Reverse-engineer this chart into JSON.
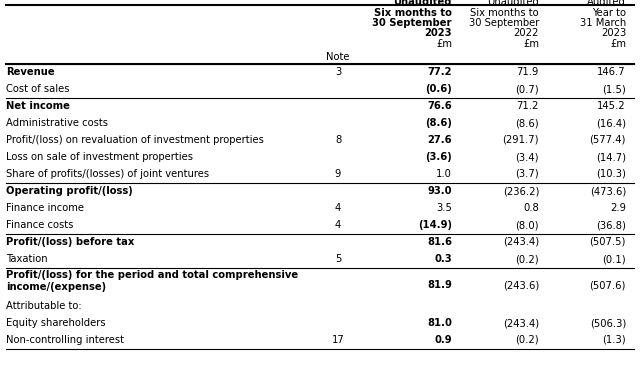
{
  "header2_lines": [
    "Unaudited",
    "Six months to",
    "30 September",
    "2023",
    "£m"
  ],
  "header3_lines": [
    "Unaudited",
    "Six months to",
    "30 September",
    "2022",
    "£m"
  ],
  "header4_lines": [
    "Audited",
    "Year to",
    "31 March",
    "2023",
    "£m"
  ],
  "rows": [
    {
      "label": "Revenue",
      "bold_label": true,
      "note": "3",
      "v1": "77.2",
      "bold_v1": true,
      "v2": "71.9",
      "bold_v2": false,
      "v3": "146.7",
      "bold_v3": false,
      "sep_before": true,
      "tall": false
    },
    {
      "label": "Cost of sales",
      "bold_label": false,
      "note": "",
      "v1": "(0.6)",
      "bold_v1": true,
      "v2": "(0.7)",
      "bold_v2": false,
      "v3": "(1.5)",
      "bold_v3": false,
      "sep_before": false,
      "tall": false
    },
    {
      "label": "Net income",
      "bold_label": true,
      "note": "",
      "v1": "76.6",
      "bold_v1": true,
      "v2": "71.2",
      "bold_v2": false,
      "v3": "145.2",
      "bold_v3": false,
      "sep_before": true,
      "tall": false
    },
    {
      "label": "Administrative costs",
      "bold_label": false,
      "note": "",
      "v1": "(8.6)",
      "bold_v1": true,
      "v2": "(8.6)",
      "bold_v2": false,
      "v3": "(16.4)",
      "bold_v3": false,
      "sep_before": false,
      "tall": false
    },
    {
      "label": "Profit/(loss) on revaluation of investment properties",
      "bold_label": false,
      "note": "8",
      "v1": "27.6",
      "bold_v1": true,
      "v2": "(291.7)",
      "bold_v2": false,
      "v3": "(577.4)",
      "bold_v3": false,
      "sep_before": false,
      "tall": false
    },
    {
      "label": "Loss on sale of investment properties",
      "bold_label": false,
      "note": "",
      "v1": "(3.6)",
      "bold_v1": true,
      "v2": "(3.4)",
      "bold_v2": false,
      "v3": "(14.7)",
      "bold_v3": false,
      "sep_before": false,
      "tall": false
    },
    {
      "label": "Share of profits/(losses) of joint ventures",
      "bold_label": false,
      "note": "9",
      "v1": "1.0",
      "bold_v1": false,
      "v2": "(3.7)",
      "bold_v2": false,
      "v3": "(10.3)",
      "bold_v3": false,
      "sep_before": false,
      "tall": false
    },
    {
      "label": "Operating profit/(loss)",
      "bold_label": true,
      "note": "",
      "v1": "93.0",
      "bold_v1": true,
      "v2": "(236.2)",
      "bold_v2": false,
      "v3": "(473.6)",
      "bold_v3": false,
      "sep_before": true,
      "tall": false
    },
    {
      "label": "Finance income",
      "bold_label": false,
      "note": "4",
      "v1": "3.5",
      "bold_v1": false,
      "v2": "0.8",
      "bold_v2": false,
      "v3": "2.9",
      "bold_v3": false,
      "sep_before": false,
      "tall": false
    },
    {
      "label": "Finance costs",
      "bold_label": false,
      "note": "4",
      "v1": "(14.9)",
      "bold_v1": true,
      "v2": "(8.0)",
      "bold_v2": false,
      "v3": "(36.8)",
      "bold_v3": false,
      "sep_before": false,
      "tall": false
    },
    {
      "label": "Profit/(loss) before tax",
      "bold_label": true,
      "note": "",
      "v1": "81.6",
      "bold_v1": true,
      "v2": "(243.4)",
      "bold_v2": false,
      "v3": "(507.5)",
      "bold_v3": false,
      "sep_before": true,
      "tall": false
    },
    {
      "label": "Taxation",
      "bold_label": false,
      "note": "5",
      "v1": "0.3",
      "bold_v1": true,
      "v2": "(0.2)",
      "bold_v2": false,
      "v3": "(0.1)",
      "bold_v3": false,
      "sep_before": false,
      "tall": false
    },
    {
      "label": "Profit/(loss) for the period and total comprehensive\nincome/(expense)",
      "bold_label": true,
      "note": "",
      "v1": "81.9",
      "bold_v1": true,
      "v2": "(243.6)",
      "bold_v2": false,
      "v3": "(507.6)",
      "bold_v3": false,
      "sep_before": true,
      "tall": true
    },
    {
      "label": "Attributable to:",
      "bold_label": false,
      "note": "",
      "v1": "",
      "bold_v1": false,
      "v2": "",
      "bold_v2": false,
      "v3": "",
      "bold_v3": false,
      "sep_before": false,
      "tall": false
    },
    {
      "label": "Equity shareholders",
      "bold_label": false,
      "note": "",
      "v1": "81.0",
      "bold_v1": true,
      "v2": "(243.4)",
      "bold_v2": false,
      "v3": "(506.3)",
      "bold_v3": false,
      "sep_before": false,
      "tall": false
    },
    {
      "label": "Non-controlling interest",
      "bold_label": false,
      "note": "17",
      "v1": "0.9",
      "bold_v1": true,
      "v2": "(0.2)",
      "bold_v2": false,
      "v3": "(1.3)",
      "bold_v3": false,
      "sep_before": false,
      "tall": false
    }
  ],
  "bg_color": "#ffffff",
  "text_color": "#000000",
  "line_color": "#000000",
  "font_size": 7.2,
  "header_font_size": 7.2
}
